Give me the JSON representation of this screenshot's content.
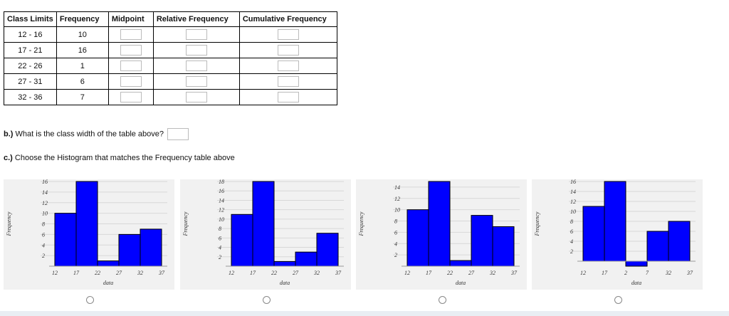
{
  "table": {
    "headers": [
      "Class Limits",
      "Frequency",
      "Midpoint",
      "Relative Frequency",
      "Cumulative Frequency"
    ],
    "rows": [
      {
        "class_limits": "12 - 16",
        "frequency": "10"
      },
      {
        "class_limits": "17 - 21",
        "frequency": "16"
      },
      {
        "class_limits": "22 - 26",
        "frequency": "1"
      },
      {
        "class_limits": "27 - 31",
        "frequency": "6"
      },
      {
        "class_limits": "32 - 36",
        "frequency": "7"
      }
    ]
  },
  "question_b": {
    "prefix": "b.)",
    "text": "What is the class width of the table above?"
  },
  "question_c": {
    "prefix": "c.)",
    "text": "Choose the Histogram that matches the Frequency table above"
  },
  "colors": {
    "bar": "#0000ff",
    "bar_edge": "#000000",
    "panel_bg": "#f1f1f1",
    "grid": "#d8d8d8"
  },
  "chart_data": [
    {
      "type": "bar",
      "xlabel": "data",
      "ylabel": "Frequency",
      "x_ticks": [
        "12",
        "17",
        "22",
        "27",
        "32",
        "37"
      ],
      "y_ticks": [
        "2",
        "4",
        "6",
        "8",
        "10",
        "12",
        "14",
        "16"
      ],
      "ylim": [
        0,
        16
      ],
      "categories": [
        "12-17",
        "17-22",
        "22-27",
        "27-32",
        "32-37"
      ],
      "values": [
        10,
        16,
        1,
        6,
        7
      ]
    },
    {
      "type": "bar",
      "xlabel": "data",
      "ylabel": "Frequency",
      "x_ticks": [
        "12",
        "17",
        "22",
        "27",
        "32",
        "37"
      ],
      "y_ticks": [
        "2",
        "4",
        "6",
        "8",
        "10",
        "12",
        "14",
        "16",
        "18"
      ],
      "ylim": [
        0,
        18
      ],
      "categories": [
        "12-17",
        "17-22",
        "22-27",
        "27-32",
        "32-37"
      ],
      "values": [
        11,
        18,
        1,
        3,
        7
      ]
    },
    {
      "type": "bar",
      "xlabel": "data",
      "ylabel": "Frequency",
      "x_ticks": [
        "12",
        "17",
        "22",
        "27",
        "32",
        "37"
      ],
      "y_ticks": [
        "2",
        "4",
        "6",
        "8",
        "10",
        "12",
        "14"
      ],
      "ylim": [
        0,
        15
      ],
      "categories": [
        "12-17",
        "17-22",
        "22-27",
        "27-32",
        "32-37"
      ],
      "values": [
        10,
        15,
        1,
        9,
        7
      ]
    },
    {
      "type": "bar",
      "xlabel": "data",
      "ylabel": "Frequency",
      "x_ticks": [
        "12",
        "17",
        "2",
        "7",
        "32",
        "37"
      ],
      "y_ticks": [
        "2",
        "4",
        "6",
        "8",
        "10",
        "12",
        "14",
        "16"
      ],
      "ylim": [
        -1,
        16
      ],
      "categories": [
        "12-17",
        "17-22",
        "22-27",
        "27-32",
        "32-37"
      ],
      "values": [
        11,
        16,
        -1,
        6,
        8
      ]
    }
  ]
}
